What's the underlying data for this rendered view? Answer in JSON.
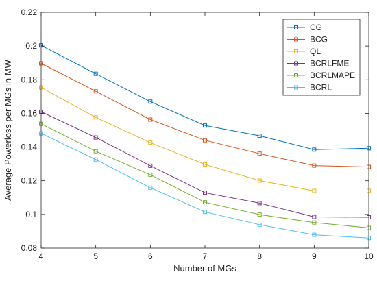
{
  "chart_data": {
    "type": "line",
    "title": "",
    "xlabel": "Number of MGs",
    "ylabel": "Average Powerloss per MGs in MW",
    "x": [
      4,
      5,
      6,
      7,
      8,
      9,
      10
    ],
    "xlim": [
      4,
      10
    ],
    "ylim": [
      0.08,
      0.22
    ],
    "xticks": [
      "4",
      "5",
      "6",
      "7",
      "8",
      "9",
      "10"
    ],
    "yticks": [
      "0.08",
      "0.1",
      "0.12",
      "0.14",
      "0.16",
      "0.18",
      "0.2",
      "0.22"
    ],
    "grid": false,
    "legend_position": "top-right",
    "marker": "square",
    "series": [
      {
        "name": "CG",
        "color": "#0072BD",
        "values": [
          0.2004,
          0.1835,
          0.167,
          0.1528,
          0.1467,
          0.1385,
          0.1393
        ]
      },
      {
        "name": "BCG",
        "color": "#D95319",
        "values": [
          0.1897,
          0.1731,
          0.1563,
          0.144,
          0.1361,
          0.129,
          0.1282
        ]
      },
      {
        "name": "QL",
        "color": "#EDB120",
        "values": [
          0.1754,
          0.1576,
          0.1426,
          0.1297,
          0.1201,
          0.114,
          0.114
        ]
      },
      {
        "name": "BCRLFME",
        "color": "#7E2F8E",
        "values": [
          0.161,
          0.1457,
          0.1289,
          0.1129,
          0.1067,
          0.0985,
          0.0983
        ]
      },
      {
        "name": "BCRLMAPE",
        "color": "#77AC30",
        "values": [
          0.1538,
          0.1375,
          0.1236,
          0.1072,
          0.0999,
          0.0952,
          0.092
        ]
      },
      {
        "name": "BCRL",
        "color": "#4DBEEE",
        "values": [
          0.1481,
          0.1326,
          0.1159,
          0.1015,
          0.0939,
          0.0879,
          0.086
        ]
      }
    ]
  }
}
